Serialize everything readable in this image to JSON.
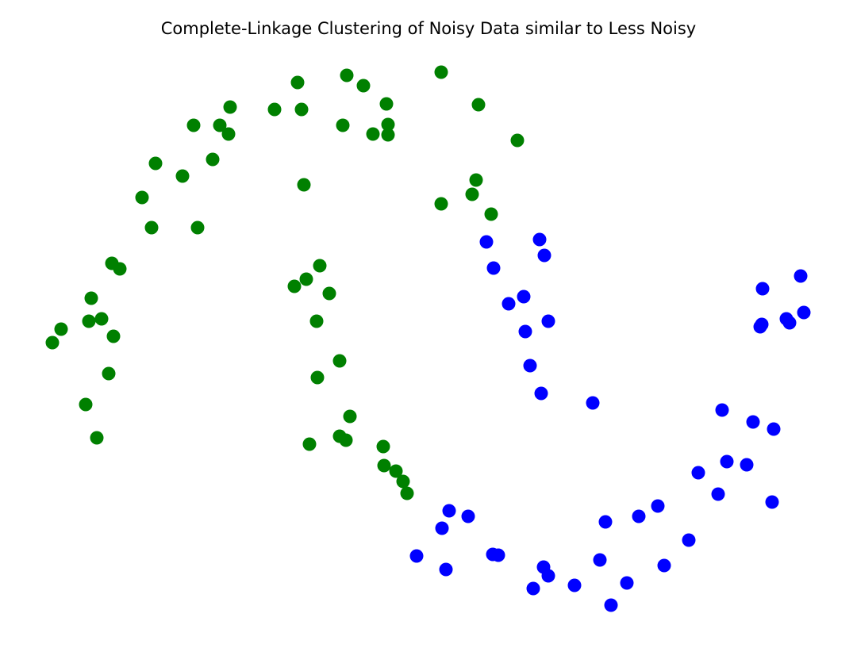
{
  "chart_data": {
    "type": "scatter",
    "title": "Complete-Linkage Clustering of Noisy Data similar to Less Noisy",
    "xlabel": "",
    "ylabel": "",
    "axes_visible": false,
    "grid": false,
    "legend": "none",
    "colors": {
      "cluster_0": "#008000",
      "cluster_1": "#0000ff"
    },
    "series": [
      {
        "cluster": "cluster_0",
        "points": [
          [
            66,
            432
          ],
          [
            77,
            415
          ],
          [
            108,
            510
          ],
          [
            112,
            405
          ],
          [
            115,
            376
          ],
          [
            122,
            552
          ],
          [
            128,
            402
          ],
          [
            137,
            471
          ],
          [
            141,
            332
          ],
          [
            143,
            424
          ],
          [
            151,
            339
          ],
          [
            179,
            249
          ],
          [
            191,
            287
          ],
          [
            196,
            206
          ],
          [
            230,
            222
          ],
          [
            244,
            158
          ],
          [
            249,
            287
          ],
          [
            268,
            201
          ],
          [
            277,
            158
          ],
          [
            288,
            169
          ],
          [
            290,
            135
          ],
          [
            346,
            138
          ],
          [
            375,
            104
          ],
          [
            380,
            138
          ],
          [
            383,
            233
          ],
          [
            371,
            361
          ],
          [
            386,
            352
          ],
          [
            403,
            335
          ],
          [
            399,
            405
          ],
          [
            415,
            370
          ],
          [
            400,
            476
          ],
          [
            390,
            560
          ],
          [
            428,
            455
          ],
          [
            441,
            525
          ],
          [
            428,
            550
          ],
          [
            436,
            555
          ],
          [
            437,
            95
          ],
          [
            458,
            108
          ],
          [
            432,
            158
          ],
          [
            470,
            169
          ],
          [
            487,
            131
          ],
          [
            489,
            157
          ],
          [
            489,
            170
          ],
          [
            483,
            563
          ],
          [
            484,
            587
          ],
          [
            499,
            594
          ],
          [
            508,
            607
          ],
          [
            513,
            622
          ],
          [
            556,
            91
          ],
          [
            556,
            257
          ],
          [
            603,
            132
          ],
          [
            652,
            177
          ],
          [
            600,
            227
          ],
          [
            595,
            245
          ],
          [
            619,
            270
          ]
        ]
      },
      {
        "cluster": "cluster_1",
        "points": [
          [
            613,
            305
          ],
          [
            622,
            338
          ],
          [
            641,
            383
          ],
          [
            660,
            374
          ],
          [
            662,
            418
          ],
          [
            680,
            302
          ],
          [
            686,
            322
          ],
          [
            691,
            405
          ],
          [
            668,
            461
          ],
          [
            682,
            496
          ],
          [
            747,
            508
          ],
          [
            525,
            701
          ],
          [
            557,
            666
          ],
          [
            566,
            644
          ],
          [
            562,
            718
          ],
          [
            590,
            651
          ],
          [
            621,
            699
          ],
          [
            628,
            700
          ],
          [
            672,
            742
          ],
          [
            685,
            715
          ],
          [
            691,
            726
          ],
          [
            724,
            738
          ],
          [
            756,
            706
          ],
          [
            763,
            658
          ],
          [
            770,
            763
          ],
          [
            790,
            735
          ],
          [
            805,
            651
          ],
          [
            829,
            638
          ],
          [
            837,
            713
          ],
          [
            868,
            681
          ],
          [
            880,
            596
          ],
          [
            905,
            623
          ],
          [
            910,
            517
          ],
          [
            916,
            582
          ],
          [
            941,
            586
          ],
          [
            949,
            532
          ],
          [
            973,
            633
          ],
          [
            975,
            541
          ],
          [
            961,
            364
          ],
          [
            958,
            412
          ],
          [
            960,
            409
          ],
          [
            1009,
            348
          ],
          [
            991,
            402
          ],
          [
            995,
            407
          ],
          [
            1013,
            394
          ]
        ]
      }
    ]
  }
}
